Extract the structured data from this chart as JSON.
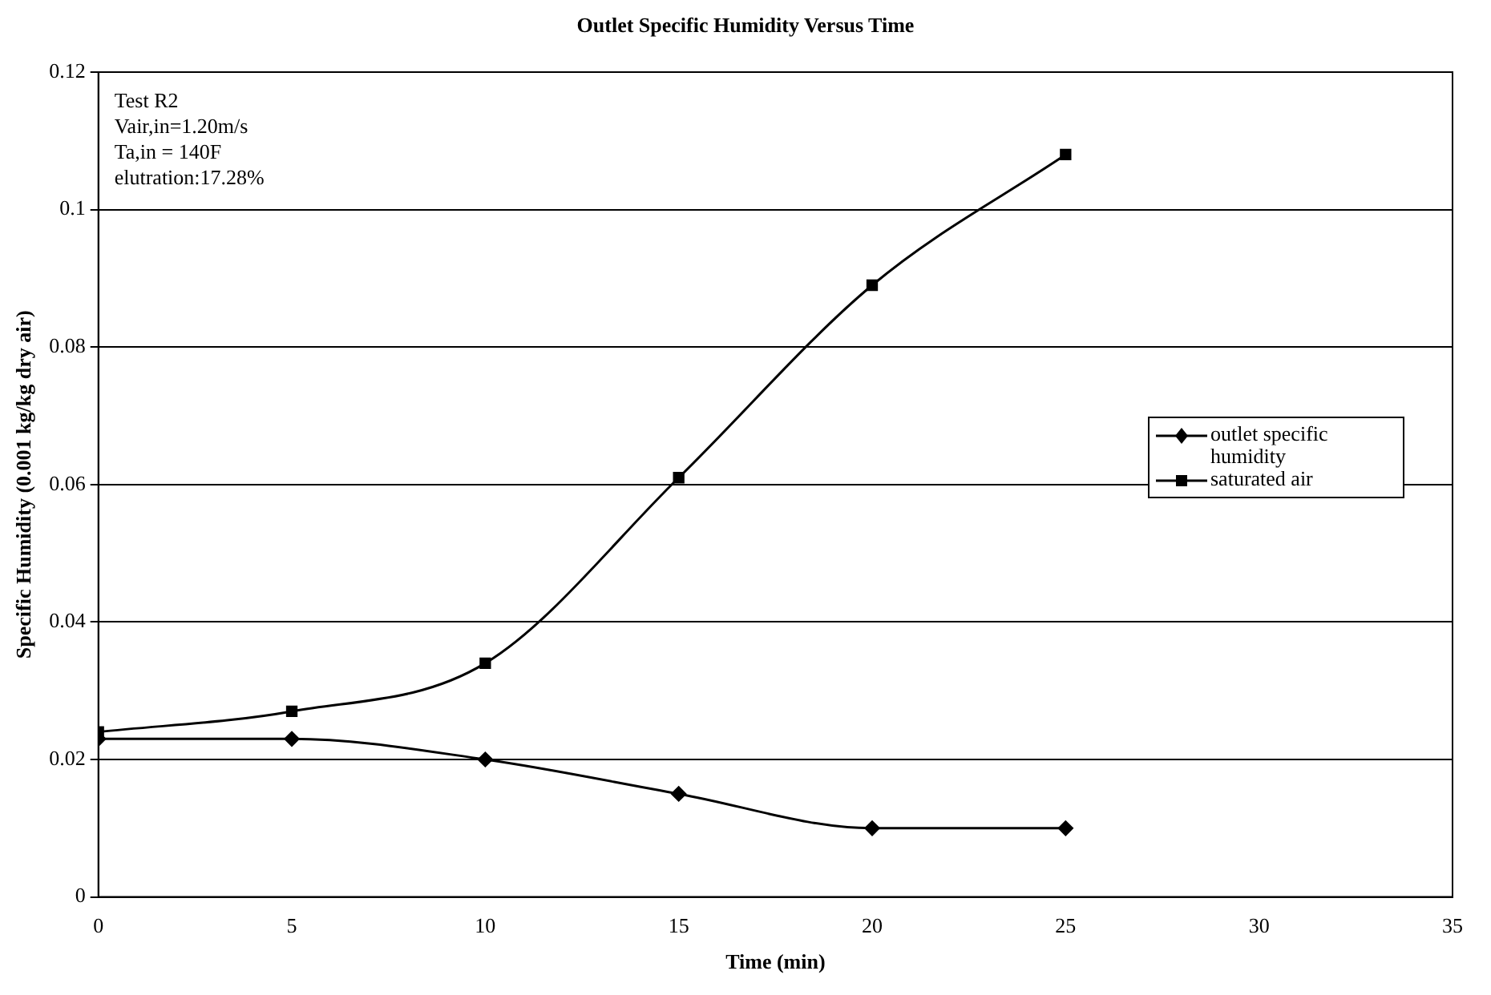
{
  "chart_data": {
    "type": "line",
    "title": "Outlet Specific Humidity Versus Time",
    "xlabel": "Time (min)",
    "ylabel": "Specific Humidity (0.001 kg/kg dry air)",
    "x": [
      0,
      5,
      10,
      15,
      20,
      25
    ],
    "series": [
      {
        "name": "outlet specific humidity",
        "color": "#000000",
        "marker": "diamond",
        "values": [
          0.023,
          0.023,
          0.02,
          0.015,
          0.01,
          0.01
        ]
      },
      {
        "name": "saturated air",
        "color": "#000000",
        "marker": "square",
        "values": [
          0.024,
          0.027,
          0.034,
          0.061,
          0.089,
          0.108
        ]
      }
    ],
    "xlim": [
      0,
      35
    ],
    "xticks": [
      0,
      5,
      10,
      15,
      20,
      25,
      30,
      35
    ],
    "ylim": [
      0,
      0.12
    ],
    "yticks": [
      0,
      0.02,
      0.04,
      0.06,
      0.08,
      0.1,
      0.12
    ],
    "grid": "y",
    "legend": "right",
    "line_style": "solid",
    "annotations": [
      "Test R2",
      "Vair,in=1.20m/s",
      "Ta,in = 140F",
      "elutration:17.28%"
    ]
  }
}
